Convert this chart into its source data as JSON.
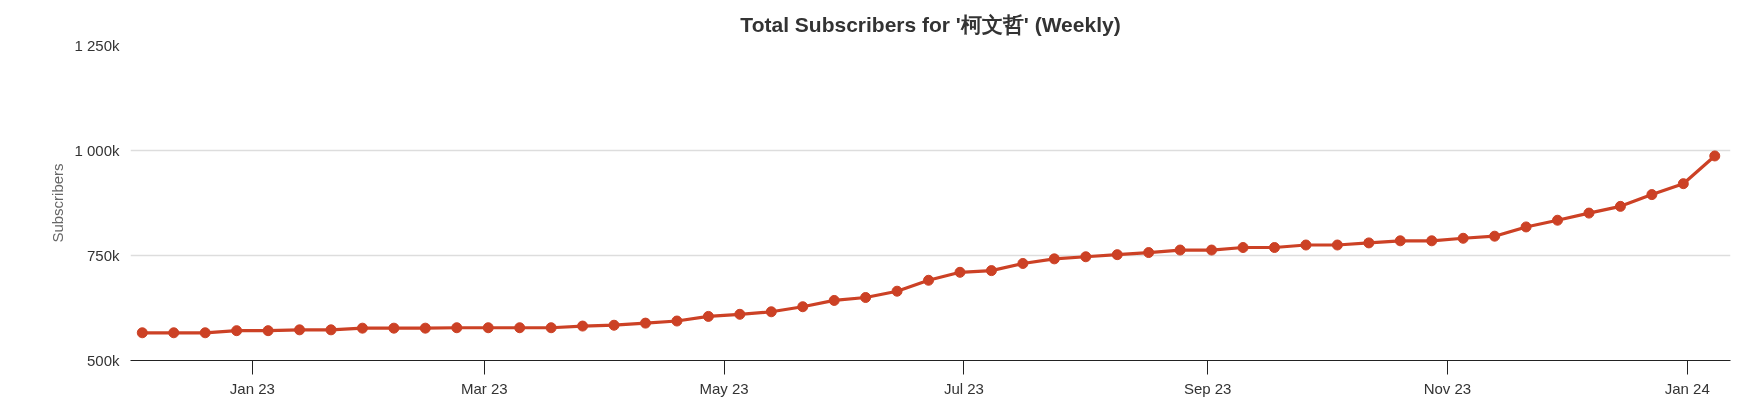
{
  "chart_data": {
    "type": "line",
    "title": "Total Subscribers for '柯文哲' (Weekly)",
    "ylabel": "Subscribers",
    "x": [
      "2022-12-04",
      "2022-12-12",
      "2022-12-20",
      "2022-12-28",
      "2023-01-05",
      "2023-01-13",
      "2023-01-21",
      "2023-01-29",
      "2023-02-06",
      "2023-02-14",
      "2023-02-22",
      "2023-03-02",
      "2023-03-10",
      "2023-03-18",
      "2023-03-26",
      "2023-04-03",
      "2023-04-11",
      "2023-04-19",
      "2023-04-27",
      "2023-05-05",
      "2023-05-13",
      "2023-05-21",
      "2023-05-29",
      "2023-06-06",
      "2023-06-14",
      "2023-06-22",
      "2023-06-30",
      "2023-07-08",
      "2023-07-16",
      "2023-07-24",
      "2023-08-01",
      "2023-08-09",
      "2023-08-17",
      "2023-08-25",
      "2023-09-02",
      "2023-09-10",
      "2023-09-18",
      "2023-09-26",
      "2023-10-04",
      "2023-10-12",
      "2023-10-20",
      "2023-10-28",
      "2023-11-05",
      "2023-11-13",
      "2023-11-21",
      "2023-11-29",
      "2023-12-07",
      "2023-12-15",
      "2023-12-23",
      "2023-12-31",
      "2024-01-08"
    ],
    "series": [
      {
        "color": "#cc4125",
        "values": [
          566000,
          566000,
          566000,
          571000,
          571000,
          573000,
          573000,
          577000,
          577000,
          577000,
          578000,
          578000,
          578000,
          578000,
          582000,
          584000,
          589000,
          594000,
          605000,
          610000,
          616000,
          628000,
          643000,
          650000,
          665000,
          691000,
          710000,
          714000,
          731000,
          742000,
          747000,
          752000,
          757000,
          763000,
          763000,
          769000,
          769000,
          775000,
          775000,
          780000,
          785000,
          785000,
          791000,
          796000,
          818000,
          834000,
          851000,
          867000,
          895000,
          921000,
          987000
        ]
      }
    ],
    "xlim": [
      "2022-12-01",
      "2024-01-12"
    ],
    "xticks": [
      {
        "value": "2023-01-01",
        "label": "Jan 23"
      },
      {
        "value": "2023-03-01",
        "label": "Mar 23"
      },
      {
        "value": "2023-05-01",
        "label": "May 23"
      },
      {
        "value": "2023-07-01",
        "label": "Jul 23"
      },
      {
        "value": "2023-09-01",
        "label": "Sep 23"
      },
      {
        "value": "2023-11-01",
        "label": "Nov 23"
      },
      {
        "value": "2024-01-01",
        "label": "Jan 24"
      }
    ],
    "ylim": [
      500000,
      1250000
    ],
    "yticks": [
      {
        "value": 500000,
        "label": "500k"
      },
      {
        "value": 750000,
        "label": "750k"
      },
      {
        "value": 1000000,
        "label": "1 000k"
      },
      {
        "value": 1250000,
        "label": "1 250k"
      }
    ],
    "grid": "y",
    "marker": "circle",
    "line_style": "solid"
  }
}
